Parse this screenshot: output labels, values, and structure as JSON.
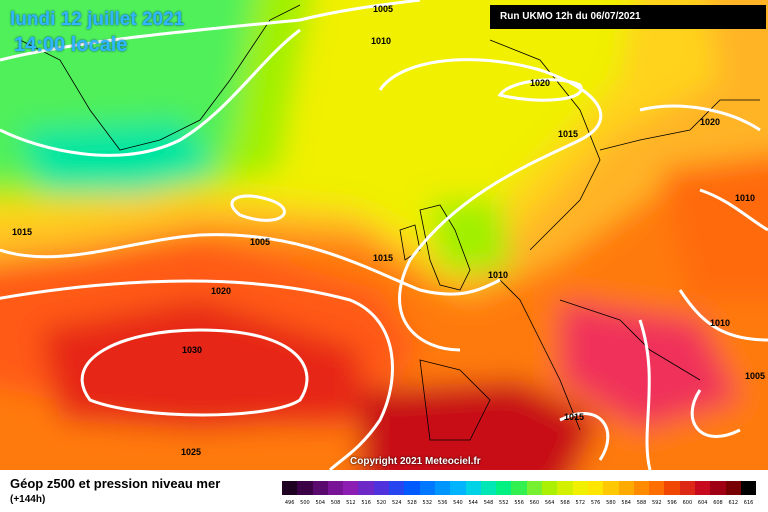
{
  "title": {
    "date": "lundi 12 juillet 2021",
    "local_time": "14:00 locale"
  },
  "run_info": "Run UKMO 12h du 06/07/2021",
  "copyright": "Copyright 2021 Meteociel.fr",
  "footer": {
    "layer": "Géop z500 et pression niveau mer",
    "forecast_hour": "(+144h)"
  },
  "isobar_labels": [
    "1005",
    "1010",
    "1020",
    "1015",
    "1020",
    "1010",
    "1015",
    "1005",
    "1015",
    "1010",
    "1020",
    "1010",
    "1030",
    "1005",
    "1015",
    "1025"
  ],
  "legend": {
    "ticks": [
      "496",
      "500",
      "504",
      "508",
      "512",
      "516",
      "520",
      "524",
      "528",
      "532",
      "536",
      "540",
      "544",
      "548",
      "552",
      "556",
      "560",
      "564",
      "568",
      "572",
      "576",
      "580",
      "584",
      "588",
      "592",
      "596",
      "600",
      "604",
      "608",
      "612",
      "616"
    ],
    "colors": [
      "#1e0020",
      "#3c0046",
      "#5a0a6e",
      "#781496",
      "#8c1eb4",
      "#6e28c8",
      "#5032dc",
      "#2846f0",
      "#005aff",
      "#0078ff",
      "#0096ff",
      "#00b4ff",
      "#00d2e6",
      "#00e6b4",
      "#00f082",
      "#32f050",
      "#78f032",
      "#aaf000",
      "#d2f000",
      "#f0f000",
      "#ffe600",
      "#ffc800",
      "#ffaa00",
      "#ff8c00",
      "#ff6e00",
      "#f04600",
      "#dc2814",
      "#c80a1e",
      "#a00014",
      "#780000",
      "#000000"
    ]
  }
}
